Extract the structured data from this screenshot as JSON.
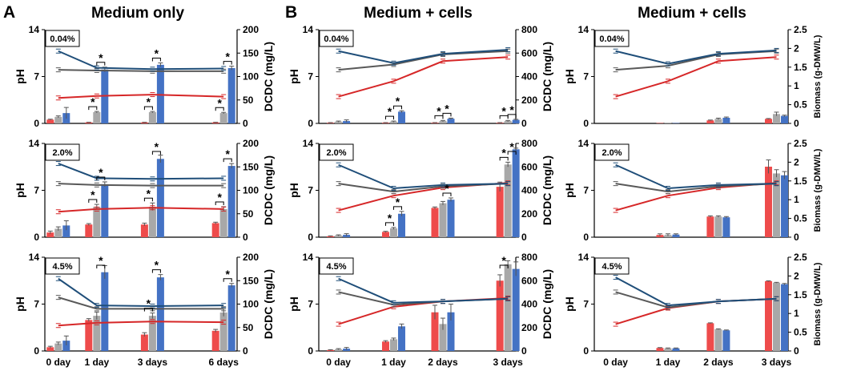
{
  "panel_labels": {
    "A": "A",
    "B": "B"
  },
  "column_titles": {
    "col1": "Medium only",
    "col2": "Medium + cells",
    "col3": "Medium + cells"
  },
  "colors": {
    "red": "#ee4b4b",
    "gray": "#a8a8a8",
    "blue": "#4472c4",
    "line_blue": "#1f4e79",
    "line_gray": "#595959",
    "line_red": "#d62728"
  },
  "chart_data": [
    {
      "id": "A1",
      "type": "bar",
      "box_label": "0.04%",
      "ylabel_left": "pH",
      "ylabel_right": "DCDC (mg/L)",
      "ylim_left": [
        0,
        14
      ],
      "yticks_left": [
        "0",
        "7",
        "14"
      ],
      "ylim_right": [
        0,
        200
      ],
      "yticks_right": [
        "0",
        "50",
        "100",
        "150",
        "200"
      ],
      "categories": [
        "0 day",
        "1 day",
        "3 days",
        "6 days"
      ],
      "show_xlabels": false,
      "bars": {
        "red": [
          8,
          2,
          2,
          2
        ],
        "gray": [
          14,
          24,
          24,
          22
        ],
        "blue": [
          22,
          115,
          125,
          118
        ]
      },
      "bar_errors": {
        "red": [
          1,
          0.5,
          0.5,
          0.5
        ],
        "gray": [
          2,
          1.5,
          1.5,
          1.5
        ],
        "blue": [
          12,
          5,
          4,
          4
        ]
      },
      "lines": {
        "blue": [
          10.8,
          8.3,
          8.1,
          8.2
        ],
        "gray": [
          8.0,
          7.9,
          7.8,
          7.8
        ],
        "red": [
          3.8,
          4.1,
          4.3,
          4.0
        ]
      },
      "stars": [
        {
          "cat": 1,
          "pair": "rg"
        },
        {
          "cat": 1,
          "pair": "gb"
        },
        {
          "cat": 2,
          "pair": "rg"
        },
        {
          "cat": 2,
          "pair": "gb"
        },
        {
          "cat": 3,
          "pair": "rg"
        },
        {
          "cat": 3,
          "pair": "gb"
        }
      ]
    },
    {
      "id": "A2",
      "type": "bar",
      "box_label": "2.0%",
      "ylabel_left": "pH",
      "ylabel_right": "DCDC (mg/L)",
      "ylim_left": [
        0,
        14
      ],
      "yticks_left": [
        "0",
        "7",
        "14"
      ],
      "ylim_right": [
        0,
        200
      ],
      "yticks_right": [
        "0",
        "50",
        "100",
        "150",
        "200"
      ],
      "categories": [
        "0 day",
        "1 day",
        "3 days",
        "6 days"
      ],
      "show_xlabels": false,
      "bars": {
        "red": [
          10,
          27,
          27,
          30
        ],
        "gray": [
          18,
          65,
          65,
          60
        ],
        "blue": [
          25,
          113,
          167,
          152
        ]
      },
      "bar_errors": {
        "red": [
          3,
          2,
          3,
          2
        ],
        "gray": [
          4,
          5,
          8,
          5
        ],
        "blue": [
          10,
          5,
          8,
          5
        ]
      },
      "lines": {
        "blue": [
          11.0,
          8.8,
          8.7,
          8.8
        ],
        "gray": [
          8.0,
          7.8,
          7.7,
          7.7
        ],
        "red": [
          3.8,
          4.2,
          4.4,
          4.2
        ]
      },
      "stars": [
        {
          "cat": 1,
          "pair": "rg"
        },
        {
          "cat": 1,
          "pair": "gb"
        },
        {
          "cat": 2,
          "pair": "rg"
        },
        {
          "cat": 2,
          "pair": "gb"
        },
        {
          "cat": 3,
          "pair": "rg"
        },
        {
          "cat": 3,
          "pair": "gb"
        }
      ]
    },
    {
      "id": "A3",
      "type": "bar",
      "box_label": "4.5%",
      "ylabel_left": "pH",
      "ylabel_right": "DCDC (mg/L)",
      "ylim_left": [
        0,
        14
      ],
      "yticks_left": [
        "0",
        "7",
        "14"
      ],
      "ylim_right": [
        0,
        200
      ],
      "yticks_right": [
        "0",
        "50",
        "100",
        "150",
        "200"
      ],
      "categories": [
        "0 day",
        "1 day",
        "3 days",
        "6 days"
      ],
      "show_xlabels": true,
      "bars": {
        "red": [
          8,
          66,
          35,
          43
        ],
        "gray": [
          16,
          75,
          75,
          82
        ],
        "blue": [
          22,
          168,
          157,
          140
        ]
      },
      "bar_errors": {
        "red": [
          2,
          3,
          4,
          3
        ],
        "gray": [
          3,
          8,
          6,
          8
        ],
        "blue": [
          10,
          14,
          6,
          4
        ]
      },
      "lines": {
        "blue": [
          10.8,
          6.8,
          6.7,
          6.8
        ],
        "gray": [
          8.0,
          6.3,
          6.3,
          6.3
        ],
        "red": [
          3.8,
          4.2,
          4.4,
          4.3
        ]
      },
      "stars": [
        {
          "cat": 1,
          "pair": "gb"
        },
        {
          "cat": 2,
          "pair": "rg"
        },
        {
          "cat": 2,
          "pair": "gb"
        },
        {
          "cat": 3,
          "pair": "gb"
        }
      ]
    },
    {
      "id": "B1",
      "type": "bar",
      "box_label": "0.04%",
      "ylabel_left": "pH",
      "ylabel_right": "DCDC (mg/L)",
      "ylim_left": [
        0,
        14
      ],
      "yticks_left": [
        "0",
        "7",
        "14"
      ],
      "ylim_right": [
        0,
        800
      ],
      "yticks_right": [
        "0",
        "200",
        "400",
        "600",
        "800"
      ],
      "categories": [
        "0 day",
        "1 day",
        "2 days",
        "3 days"
      ],
      "show_xlabels": false,
      "bars": {
        "red": [
          5,
          5,
          5,
          5
        ],
        "gray": [
          15,
          15,
          20,
          20
        ],
        "blue": [
          20,
          100,
          40,
          30
        ]
      },
      "bar_errors": {
        "red": [
          2,
          2,
          2,
          2
        ],
        "gray": [
          5,
          5,
          5,
          5
        ],
        "blue": [
          10,
          8,
          5,
          5
        ]
      },
      "lines": {
        "blue": [
          10.8,
          9.0,
          10.4,
          11.0
        ],
        "gray": [
          8.0,
          8.8,
          10.3,
          10.8
        ],
        "red": [
          4.0,
          6.3,
          9.3,
          9.9
        ]
      },
      "stars": [
        {
          "cat": 1,
          "pair": "rg"
        },
        {
          "cat": 1,
          "pair": "gb"
        },
        {
          "cat": 2,
          "pair": "rg"
        },
        {
          "cat": 2,
          "pair": "gb"
        },
        {
          "cat": 3,
          "pair": "rg"
        },
        {
          "cat": 3,
          "pair": "gb"
        }
      ]
    },
    {
      "id": "B2",
      "type": "bar",
      "box_label": "2.0%",
      "ylabel_left": "pH",
      "ylabel_right": "DCDC (mg/L)",
      "ylim_left": [
        0,
        14
      ],
      "yticks_left": [
        "0",
        "7",
        "14"
      ],
      "ylim_right": [
        0,
        800
      ],
      "yticks_right": [
        "0",
        "200",
        "400",
        "600",
        "800"
      ],
      "categories": [
        "0 day",
        "1 day",
        "2 days",
        "3 days"
      ],
      "show_xlabels": false,
      "bars": {
        "red": [
          8,
          45,
          250,
          430
        ],
        "gray": [
          15,
          75,
          290,
          620
        ],
        "blue": [
          20,
          200,
          320,
          750
        ]
      },
      "bar_errors": {
        "red": [
          3,
          5,
          8,
          40
        ],
        "gray": [
          5,
          8,
          15,
          20
        ],
        "blue": [
          10,
          20,
          15,
          10
        ]
      },
      "lines": {
        "blue": [
          10.8,
          7.3,
          7.8,
          8.0
        ],
        "gray": [
          8.0,
          6.8,
          7.6,
          8.0
        ],
        "red": [
          4.0,
          6.2,
          7.4,
          8.1
        ]
      },
      "stars": [
        {
          "cat": 1,
          "pair": "rg"
        },
        {
          "cat": 1,
          "pair": "gb"
        },
        {
          "cat": 2,
          "pair": "gb"
        },
        {
          "cat": 3,
          "pair": "rg"
        },
        {
          "cat": 3,
          "pair": "gb"
        }
      ]
    },
    {
      "id": "B3",
      "type": "bar",
      "box_label": "4.5%",
      "ylabel_left": "pH",
      "ylabel_right": "DCDC (mg/L)",
      "ylim_left": [
        0,
        14
      ],
      "yticks_left": [
        "0",
        "7",
        "14"
      ],
      "ylim_right": [
        0,
        800
      ],
      "yticks_right": [
        "0",
        "200",
        "400",
        "600",
        "800"
      ],
      "categories": [
        "0 day",
        "1 day",
        "2 days",
        "3 days"
      ],
      "show_xlabels": true,
      "bars": {
        "red": [
          8,
          80,
          330,
          600
        ],
        "gray": [
          15,
          100,
          230,
          740
        ],
        "blue": [
          20,
          210,
          330,
          700
        ]
      },
      "bar_errors": {
        "red": [
          3,
          8,
          60,
          50
        ],
        "gray": [
          5,
          10,
          50,
          30
        ],
        "blue": [
          10,
          20,
          70,
          60
        ]
      },
      "lines": {
        "blue": [
          10.8,
          7.2,
          7.4,
          7.8
        ],
        "gray": [
          8.8,
          6.9,
          7.4,
          7.8
        ],
        "red": [
          4.0,
          6.6,
          7.4,
          7.9
        ]
      },
      "stars": [
        {
          "cat": 3,
          "pair": "rg"
        }
      ]
    },
    {
      "id": "C1",
      "type": "bar",
      "box_label": "0.04%",
      "ylabel_left": "pH",
      "ylabel_right": "Biomass (g-DMW/L)",
      "ylim_left": [
        0,
        14
      ],
      "yticks_left": [
        "0",
        "7",
        "14"
      ],
      "ylim_right": [
        0,
        2.5
      ],
      "yticks_right": [
        "0",
        "0.5",
        "1",
        "1.5",
        "2",
        "2.5"
      ],
      "categories": [
        "0 day",
        "1 day",
        "2 days",
        "3 days"
      ],
      "show_xlabels": false,
      "bars": {
        "red": [
          0,
          0.01,
          0.08,
          0.12
        ],
        "gray": [
          0,
          0.01,
          0.12,
          0.25
        ],
        "blue": [
          0,
          0.01,
          0.15,
          0.2
        ]
      },
      "bar_errors": {
        "red": [
          0,
          0,
          0.01,
          0.01
        ],
        "gray": [
          0,
          0,
          0.02,
          0.05
        ],
        "blue": [
          0,
          0,
          0.02,
          0.02
        ]
      },
      "lines": {
        "blue": [
          10.8,
          8.9,
          10.4,
          10.9
        ],
        "gray": [
          8.0,
          8.6,
          10.3,
          10.8
        ],
        "red": [
          4.0,
          6.3,
          9.3,
          9.9
        ]
      },
      "stars": []
    },
    {
      "id": "C2",
      "type": "bar",
      "box_label": "2.0%",
      "ylabel_left": "pH",
      "ylabel_right": "Biomass (g-DMW/L)",
      "ylim_left": [
        0,
        14
      ],
      "yticks_left": [
        "0",
        "7",
        "14"
      ],
      "ylim_right": [
        0,
        2.5
      ],
      "yticks_right": [
        "0",
        "0.5",
        "1",
        "1.5",
        "2",
        "2.5"
      ],
      "categories": [
        "0 day",
        "1 day",
        "2 days",
        "3 days"
      ],
      "show_xlabels": false,
      "bars": {
        "red": [
          0,
          0.06,
          0.55,
          1.88
        ],
        "gray": [
          0,
          0.06,
          0.55,
          1.7
        ],
        "blue": [
          0,
          0.07,
          0.53,
          1.65
        ]
      },
      "bar_errors": {
        "red": [
          0,
          0.03,
          0.02,
          0.18
        ],
        "gray": [
          0,
          0.03,
          0.02,
          0.1
        ],
        "blue": [
          0,
          0.02,
          0.02,
          0.1
        ]
      },
      "lines": {
        "blue": [
          10.8,
          7.3,
          7.8,
          8.0
        ],
        "gray": [
          8.0,
          6.8,
          7.6,
          8.0
        ],
        "red": [
          4.0,
          6.2,
          7.4,
          8.1
        ]
      },
      "stars": []
    },
    {
      "id": "C3",
      "type": "bar",
      "box_label": "4.5%",
      "ylabel_left": "pH",
      "ylabel_right": "Biomass (g-DMW/L)",
      "ylim_left": [
        0,
        14
      ],
      "yticks_left": [
        "0",
        "7",
        "14"
      ],
      "ylim_right": [
        0,
        2.5
      ],
      "yticks_right": [
        "0",
        "0.5",
        "1",
        "1.5",
        "2",
        "2.5"
      ],
      "categories": [
        "0 day",
        "1 day",
        "2 days",
        "3 days"
      ],
      "show_xlabels": true,
      "bars": {
        "red": [
          0,
          0.08,
          0.74,
          1.86
        ],
        "gray": [
          0,
          0.07,
          0.58,
          1.82
        ],
        "blue": [
          0,
          0.07,
          0.55,
          1.78
        ]
      },
      "bar_errors": {
        "red": [
          0,
          0.01,
          0.01,
          0.01
        ],
        "gray": [
          0,
          0.01,
          0.01,
          0.01
        ],
        "blue": [
          0,
          0.01,
          0.01,
          0.02
        ]
      },
      "lines": {
        "blue": [
          11.0,
          6.8,
          7.4,
          7.8
        ],
        "gray": [
          8.8,
          6.5,
          7.4,
          7.8
        ],
        "red": [
          4.0,
          6.4,
          7.4,
          7.8
        ]
      },
      "stars": []
    }
  ]
}
